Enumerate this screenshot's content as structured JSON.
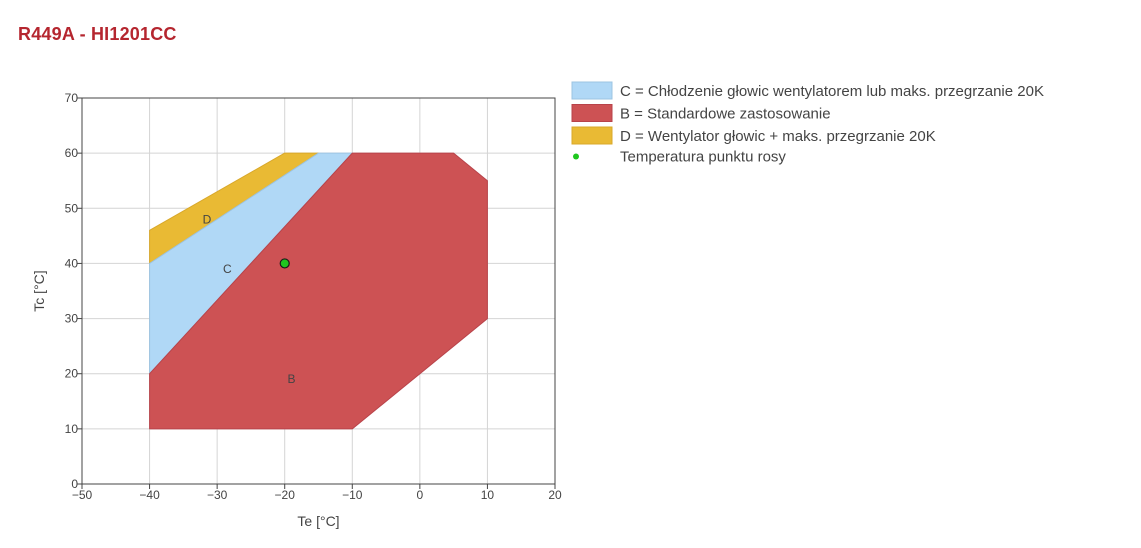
{
  "page": {
    "title": "R449A - HI1201CC"
  },
  "chart_data": {
    "type": "area",
    "xlabel": "Te [°C]",
    "ylabel": "Tc [°C]",
    "xlim": [
      -50,
      20
    ],
    "ylim": [
      0,
      70
    ],
    "x_ticks": [
      -50,
      -40,
      -30,
      -20,
      -10,
      0,
      10,
      20
    ],
    "y_ticks": [
      0,
      10,
      20,
      30,
      40,
      50,
      60,
      70
    ],
    "x_tick_labels": [
      "−50",
      "−40",
      "−30",
      "−20",
      "−10",
      "0",
      "10",
      "20"
    ],
    "y_tick_labels": [
      "0",
      "10",
      "20",
      "30",
      "40",
      "50",
      "60",
      "70"
    ],
    "grid": true,
    "legend_position": "right",
    "regions": [
      {
        "key": "D",
        "label": "D",
        "name": "D = Wentylator głowic + maks. przegrzanie 20K",
        "color": "#e9ba34",
        "label_at": [
          -31.5,
          48
        ],
        "points": [
          [
            -40,
            40
          ],
          [
            -40,
            46
          ],
          [
            -20,
            60
          ],
          [
            -15,
            60
          ],
          [
            -40,
            40
          ]
        ]
      },
      {
        "key": "C",
        "label": "C",
        "name": "C = Chłodzenie głowic wentylatorem lub maks. przegrzanie 20K",
        "color": "#b0d8f6",
        "label_at": [
          -28.5,
          39
        ],
        "points": [
          [
            -40,
            20
          ],
          [
            -40,
            40
          ],
          [
            -15,
            60
          ],
          [
            -10,
            60
          ],
          [
            -40,
            20
          ]
        ]
      },
      {
        "key": "B",
        "label": "B",
        "name": "B = Standardowe zastosowanie",
        "color": "#cd5254",
        "label_at": [
          -19,
          19
        ],
        "points": [
          [
            -40,
            10
          ],
          [
            -40,
            20
          ],
          [
            -10,
            60
          ],
          [
            5,
            60
          ],
          [
            10,
            55
          ],
          [
            10,
            30
          ],
          [
            0,
            20
          ],
          [
            -10,
            10
          ]
        ]
      }
    ],
    "points": [
      {
        "name": "Temperatura punktu rosy",
        "x": -20,
        "y": 40,
        "color": "#1fc71f"
      }
    ],
    "legend": [
      {
        "key": "C",
        "label": "C = Chłodzenie głowic wentylatorem lub maks. przegrzanie 20K",
        "color": "#b0d8f6",
        "kind": "area"
      },
      {
        "key": "B",
        "label": "B = Standardowe zastosowanie",
        "color": "#cd5254",
        "kind": "area"
      },
      {
        "key": "D",
        "label": "D = Wentylator głowic + maks. przegrzanie 20K",
        "color": "#e9ba34",
        "kind": "area"
      },
      {
        "key": "P",
        "label": "Temperatura punktu rosy",
        "color": "#1fc71f",
        "kind": "point"
      }
    ]
  }
}
